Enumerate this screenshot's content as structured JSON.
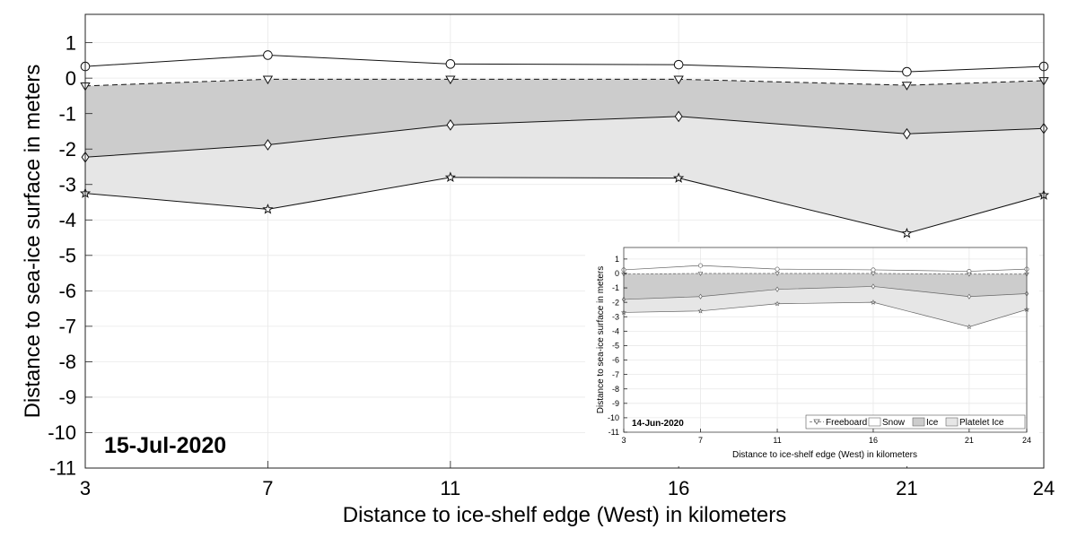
{
  "chart_data": [
    {
      "type": "area",
      "title": "",
      "date_label": "15-Jul-2020",
      "xlabel": "Distance to ice-shelf edge (West) in kilometers",
      "ylabel": "Distance to sea-ice surface in meters",
      "x": [
        3,
        7,
        11,
        16,
        21,
        24
      ],
      "x_ticks": [
        "3",
        "7",
        "11",
        "16",
        "21",
        "24"
      ],
      "xlim": [
        3,
        24
      ],
      "y_ticks": [
        1,
        0,
        -1,
        -2,
        -3,
        -4,
        -5,
        -6,
        -7,
        -8,
        -9,
        -10,
        -11
      ],
      "y_tick_labels": [
        "1",
        "0",
        "-1",
        "-2",
        "-3",
        "-4",
        "-5",
        "-6",
        "-7",
        "-8",
        "-9",
        "-10",
        "-11"
      ],
      "ylim": [
        -11,
        1.8
      ],
      "grid": true,
      "series": [
        {
          "name": "",
          "marker": "circle",
          "values": [
            0.33,
            0.65,
            0.4,
            0.38,
            0.18,
            0.33
          ]
        },
        {
          "name": "",
          "marker": "triangle-down",
          "line": "dashed",
          "values": [
            -0.22,
            -0.03,
            -0.03,
            -0.03,
            -0.2,
            -0.07
          ]
        },
        {
          "name": "",
          "marker": "diamond",
          "values": [
            -2.23,
            -1.88,
            -1.32,
            -1.08,
            -1.57,
            -1.42
          ]
        },
        {
          "name": "",
          "marker": "star",
          "values": [
            -3.25,
            -3.7,
            -2.8,
            -2.82,
            -4.38,
            -3.3
          ]
        }
      ],
      "fills": [
        {
          "between": [
            1,
            2
          ],
          "color": "#cccccc"
        },
        {
          "between": [
            2,
            3
          ],
          "color": "#e6e6e6"
        }
      ]
    },
    {
      "type": "area",
      "title": "",
      "inset": true,
      "date_label": "14-Jun-2020",
      "xlabel": "Distance to ice-shelf edge (West) in kilometers",
      "ylabel": "Distance to sea-ice surface in meters",
      "x": [
        3,
        7,
        11,
        16,
        21,
        24
      ],
      "x_ticks": [
        "3",
        "7",
        "11",
        "16",
        "21",
        "24"
      ],
      "xlim": [
        3,
        24
      ],
      "y_ticks": [
        1,
        0,
        -1,
        -2,
        -3,
        -4,
        -5,
        -6,
        -7,
        -8,
        -9,
        -10,
        -11
      ],
      "y_tick_labels": [
        "1",
        "0",
        "-1",
        "-2",
        "-3",
        "-4",
        "-5",
        "-6",
        "-7",
        "-8",
        "-9",
        "-10",
        "-11"
      ],
      "ylim": [
        -11,
        1.8
      ],
      "grid": true,
      "legend_position": "bottom-right",
      "legend": [
        "Freeboard",
        "Snow",
        "Ice",
        "Platelet Ice"
      ],
      "series": [
        {
          "name": "Snow",
          "marker": "circle",
          "values": [
            0.25,
            0.55,
            0.3,
            0.25,
            0.15,
            0.3
          ]
        },
        {
          "name": "Freeboard",
          "marker": "triangle-down",
          "line": "dashed",
          "values": [
            -0.05,
            0,
            0,
            0,
            -0.05,
            -0.05
          ]
        },
        {
          "name": "Ice",
          "marker": "diamond",
          "values": [
            -1.8,
            -1.6,
            -1.1,
            -0.9,
            -1.6,
            -1.4
          ]
        },
        {
          "name": "Platelet Ice",
          "marker": "star",
          "values": [
            -2.7,
            -2.6,
            -2.1,
            -2.0,
            -3.7,
            -2.5
          ]
        }
      ],
      "fills": [
        {
          "between": [
            1,
            2
          ],
          "color": "#cccccc"
        },
        {
          "between": [
            2,
            3
          ],
          "color": "#e6e6e6"
        }
      ]
    }
  ]
}
